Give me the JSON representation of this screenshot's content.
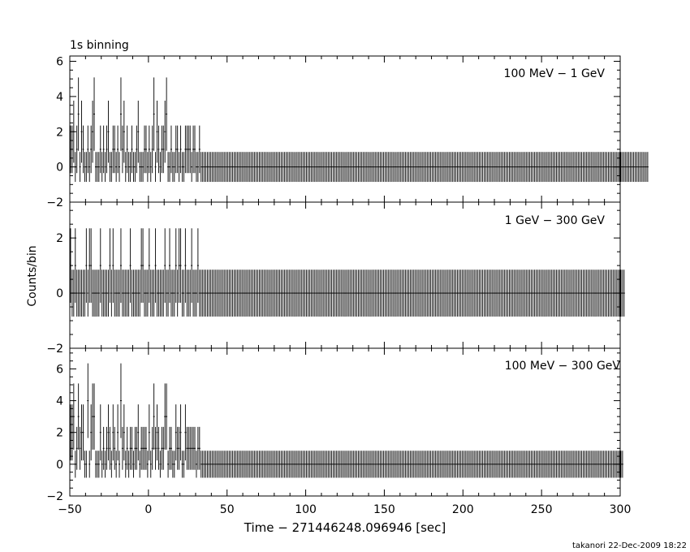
{
  "figure": {
    "binning_label": "1s binning",
    "ylabel": "Counts/bin",
    "xlabel": "Time − 271446248.096946 [sec]",
    "footer": "takanori 22-Dec-2009 18:22"
  },
  "chart_data": [
    {
      "type": "bar",
      "label": "100 MeV − 1 GeV",
      "xlim": [
        -50,
        300
      ],
      "ylim": [
        -2,
        6.3
      ],
      "yticks": [
        -2,
        0,
        2,
        4,
        6
      ],
      "bin_width": 1,
      "x_start": -50,
      "values": [
        1,
        1,
        2,
        0,
        1,
        3,
        0,
        2,
        1,
        0,
        0,
        1,
        0,
        1,
        2,
        3,
        0,
        0,
        0,
        1,
        0,
        1,
        0,
        1,
        2,
        0,
        0,
        1,
        1,
        0,
        1,
        0,
        3,
        1,
        2,
        0,
        1,
        0,
        0,
        1,
        0,
        0,
        1,
        2,
        0,
        0,
        0,
        1,
        1,
        0,
        1,
        0,
        1,
        3,
        0,
        2,
        1,
        0,
        1,
        1,
        2,
        3,
        0,
        0,
        1,
        0,
        0,
        1,
        1,
        0,
        1,
        0,
        0,
        1,
        1,
        1,
        1,
        0,
        1,
        1,
        0,
        0,
        1,
        0,
        0,
        0,
        0,
        0,
        0,
        0,
        0,
        0,
        0,
        0,
        0,
        0,
        0,
        0,
        0,
        0,
        0,
        0,
        0,
        0,
        0,
        0,
        0,
        0,
        0,
        0,
        0,
        0,
        0,
        0,
        0,
        0,
        0,
        0,
        0,
        0,
        0,
        0,
        0,
        0,
        0,
        0,
        0,
        0,
        0,
        0,
        0,
        0,
        0,
        0,
        0,
        0,
        0,
        0,
        0,
        0,
        0,
        0,
        0,
        0,
        0,
        0,
        0,
        0,
        0,
        0,
        0,
        0,
        0,
        0,
        0,
        0,
        0,
        0,
        0,
        0,
        0,
        0,
        0,
        0,
        0,
        0,
        0,
        0,
        0,
        0,
        0,
        0,
        0,
        0,
        0,
        0,
        0,
        0,
        0,
        0,
        0,
        0,
        0,
        0,
        0,
        0,
        0,
        0,
        0,
        0,
        0,
        0,
        0,
        0,
        0,
        0,
        0,
        0,
        0,
        0,
        0,
        0,
        0,
        0,
        0,
        0,
        0,
        0,
        0,
        0,
        0,
        0,
        0,
        0,
        0,
        0,
        0,
        0,
        0,
        0,
        0,
        0,
        0,
        0,
        0,
        0,
        0,
        0,
        0,
        0,
        0,
        0,
        0,
        0,
        0,
        0,
        0,
        0,
        0,
        0,
        0,
        0,
        0,
        0,
        0,
        0,
        0,
        0,
        0,
        0,
        0,
        0,
        0,
        0,
        0,
        0,
        0,
        0,
        0,
        0,
        0,
        0,
        0,
        0,
        0,
        0,
        0,
        0,
        0,
        0,
        0,
        0,
        0,
        0,
        0,
        0,
        0,
        0,
        0,
        0,
        0,
        0,
        0,
        0,
        0,
        0,
        0,
        0,
        0,
        0,
        0,
        0,
        0,
        0,
        0,
        0,
        0,
        0,
        0,
        0,
        0,
        0,
        0,
        0,
        0,
        0,
        0,
        0,
        0,
        0,
        0,
        0,
        0,
        0,
        0,
        0,
        0,
        0,
        0,
        0,
        0,
        0,
        0,
        0,
        0,
        0,
        0,
        0,
        0,
        0,
        0,
        0,
        0,
        0,
        0,
        0,
        0,
        0,
        0,
        0,
        0,
        0,
        0,
        0,
        0,
        0,
        0,
        0,
        0,
        0,
        0,
        0,
        0,
        0,
        0,
        0,
        0,
        0,
        0,
        0,
        0,
        0,
        0,
        0,
        0,
        0,
        0,
        0
      ]
    },
    {
      "type": "bar",
      "label": "1 GeV − 300 GeV",
      "xlim": [
        -50,
        300
      ],
      "ylim": [
        -2,
        3.3
      ],
      "yticks": [
        -2,
        0,
        2
      ],
      "bin_width": 1,
      "x_start": -50,
      "values": [
        1,
        0,
        0,
        1,
        0,
        0,
        0,
        0,
        0,
        0,
        1,
        0,
        1,
        1,
        0,
        0,
        0,
        0,
        0,
        1,
        0,
        0,
        0,
        0,
        0,
        1,
        0,
        1,
        0,
        0,
        0,
        0,
        1,
        0,
        0,
        0,
        0,
        0,
        1,
        0,
        0,
        0,
        0,
        0,
        0,
        1,
        1,
        0,
        0,
        0,
        1,
        0,
        0,
        0,
        1,
        0,
        0,
        0,
        0,
        0,
        1,
        0,
        0,
        1,
        0,
        0,
        0,
        1,
        0,
        1,
        1,
        0,
        0,
        1,
        0,
        0,
        0,
        1,
        0,
        0,
        0,
        1,
        0,
        0,
        0,
        0,
        0,
        0,
        0,
        0,
        0,
        0,
        0,
        0,
        0,
        0,
        0,
        0,
        0,
        0,
        0,
        0,
        0,
        0,
        0,
        0,
        0,
        0,
        0,
        0,
        0,
        0,
        0,
        0,
        0,
        0,
        0,
        0,
        0,
        0,
        0,
        0,
        0,
        0,
        0,
        0,
        0,
        0,
        0,
        0,
        0,
        0,
        0,
        0,
        0,
        0,
        0,
        0,
        0,
        0,
        0,
        0,
        0,
        0,
        0,
        0,
        0,
        0,
        0,
        0,
        0,
        0,
        0,
        0,
        0,
        0,
        0,
        0,
        0,
        0,
        0,
        0,
        0,
        0,
        0,
        0,
        0,
        0,
        0,
        0,
        0,
        0,
        0,
        0,
        0,
        0,
        0,
        0,
        0,
        0,
        0,
        0,
        0,
        0,
        0,
        0,
        0,
        0,
        0,
        0,
        0,
        0,
        0,
        0,
        0,
        0,
        0,
        0,
        0,
        0,
        0,
        0,
        0,
        0,
        0,
        0,
        0,
        0,
        0,
        0,
        0,
        0,
        0,
        0,
        0,
        0,
        0,
        0,
        0,
        0,
        0,
        0,
        0,
        0,
        0,
        0,
        0,
        0,
        0,
        0,
        0,
        0,
        0,
        0,
        0,
        0,
        0,
        0,
        0,
        0,
        0,
        0,
        0,
        0,
        0,
        0,
        0,
        0,
        0,
        0,
        0,
        0,
        0,
        0,
        0,
        0,
        0,
        0,
        0,
        0,
        0,
        0,
        0,
        0,
        0,
        0,
        0,
        0,
        0,
        0,
        0,
        0,
        0,
        0,
        0,
        0,
        0,
        0,
        0,
        0,
        0,
        0,
        0,
        0,
        0,
        0,
        0,
        0,
        0,
        0,
        0,
        0,
        0,
        0,
        0,
        0,
        0,
        0,
        0,
        0,
        0,
        0,
        0,
        0,
        0,
        0,
        0,
        0,
        0,
        0,
        0,
        0,
        0,
        0,
        0,
        0,
        0,
        0,
        0,
        0,
        0,
        0,
        0,
        0,
        0,
        0,
        0,
        0,
        0,
        0,
        0,
        0,
        0,
        0,
        0,
        0,
        0,
        0,
        0,
        0,
        0,
        0,
        0,
        0,
        0,
        0,
        0,
        0,
        0,
        0,
        0,
        0,
        0
      ]
    },
    {
      "type": "bar",
      "label": "100 MeV − 300 GeV",
      "xlim": [
        -50,
        300
      ],
      "ylim": [
        -2,
        7.3
      ],
      "yticks": [
        -2,
        0,
        2,
        4,
        6
      ],
      "bin_width": 1,
      "x_start": -50,
      "values": [
        2,
        2,
        3,
        0,
        1,
        3,
        1,
        2,
        2,
        0,
        0,
        4,
        0,
        2,
        3,
        3,
        0,
        0,
        0,
        2,
        0,
        1,
        0,
        1,
        2,
        1,
        0,
        2,
        1,
        0,
        2,
        0,
        4,
        1,
        2,
        0,
        1,
        0,
        1,
        1,
        0,
        1,
        1,
        2,
        0,
        1,
        1,
        1,
        1,
        0,
        2,
        0,
        1,
        3,
        1,
        2,
        1,
        0,
        1,
        1,
        3,
        3,
        0,
        1,
        1,
        0,
        0,
        2,
        1,
        1,
        2,
        0,
        0,
        2,
        1,
        1,
        1,
        1,
        1,
        1,
        0,
        1,
        1,
        0,
        0,
        0,
        0,
        0,
        0,
        0,
        0,
        0,
        0,
        0,
        0,
        0,
        0,
        0,
        0,
        0,
        0,
        0,
        0,
        0,
        0,
        0,
        0,
        0,
        0,
        0,
        0,
        0,
        0,
        0,
        0,
        0,
        0,
        0,
        0,
        0,
        0,
        0,
        0,
        0,
        0,
        0,
        0,
        0,
        0,
        0,
        0,
        0,
        0,
        0,
        0,
        0,
        0,
        0,
        0,
        0,
        0,
        0,
        0,
        0,
        0,
        0,
        0,
        0,
        0,
        0,
        0,
        0,
        0,
        0,
        0,
        0,
        0,
        0,
        0,
        0,
        0,
        0,
        0,
        0,
        0,
        0,
        0,
        0,
        0,
        0,
        0,
        0,
        0,
        0,
        0,
        0,
        0,
        0,
        0,
        0,
        0,
        0,
        0,
        0,
        0,
        0,
        0,
        0,
        0,
        0,
        0,
        0,
        0,
        0,
        0,
        0,
        0,
        0,
        0,
        0,
        0,
        0,
        0,
        0,
        0,
        0,
        0,
        0,
        0,
        0,
        0,
        0,
        0,
        0,
        0,
        0,
        0,
        0,
        0,
        0,
        0,
        0,
        0,
        0,
        0,
        0,
        0,
        0,
        0,
        0,
        0,
        0,
        0,
        0,
        0,
        0,
        0,
        0,
        0,
        0,
        0,
        0,
        0,
        0,
        0,
        0,
        0,
        0,
        0,
        0,
        0,
        0,
        0,
        0,
        0,
        0,
        0,
        0,
        0,
        0,
        0,
        0,
        0,
        0,
        0,
        0,
        0,
        0,
        0,
        0,
        0,
        0,
        0,
        0,
        0,
        0,
        0,
        0,
        0,
        0,
        0,
        0,
        0,
        0,
        0,
        0,
        0,
        0,
        0,
        0,
        0,
        0,
        0,
        0,
        0,
        0,
        0,
        0,
        0,
        0,
        0,
        0,
        0,
        0,
        0,
        0,
        0,
        0,
        0,
        0,
        0,
        0,
        0,
        0,
        0,
        0,
        0,
        0,
        0,
        0,
        0,
        0,
        0,
        0,
        0,
        0,
        0,
        0,
        0,
        0,
        0,
        0,
        0,
        0,
        0,
        0,
        0,
        0,
        0,
        0,
        0,
        0,
        0,
        0,
        0,
        0,
        0,
        0,
        0,
        0,
        0,
        0
      ]
    }
  ],
  "xaxis": {
    "xticks": [
      -50,
      0,
      50,
      100,
      150,
      200,
      250,
      300
    ]
  }
}
